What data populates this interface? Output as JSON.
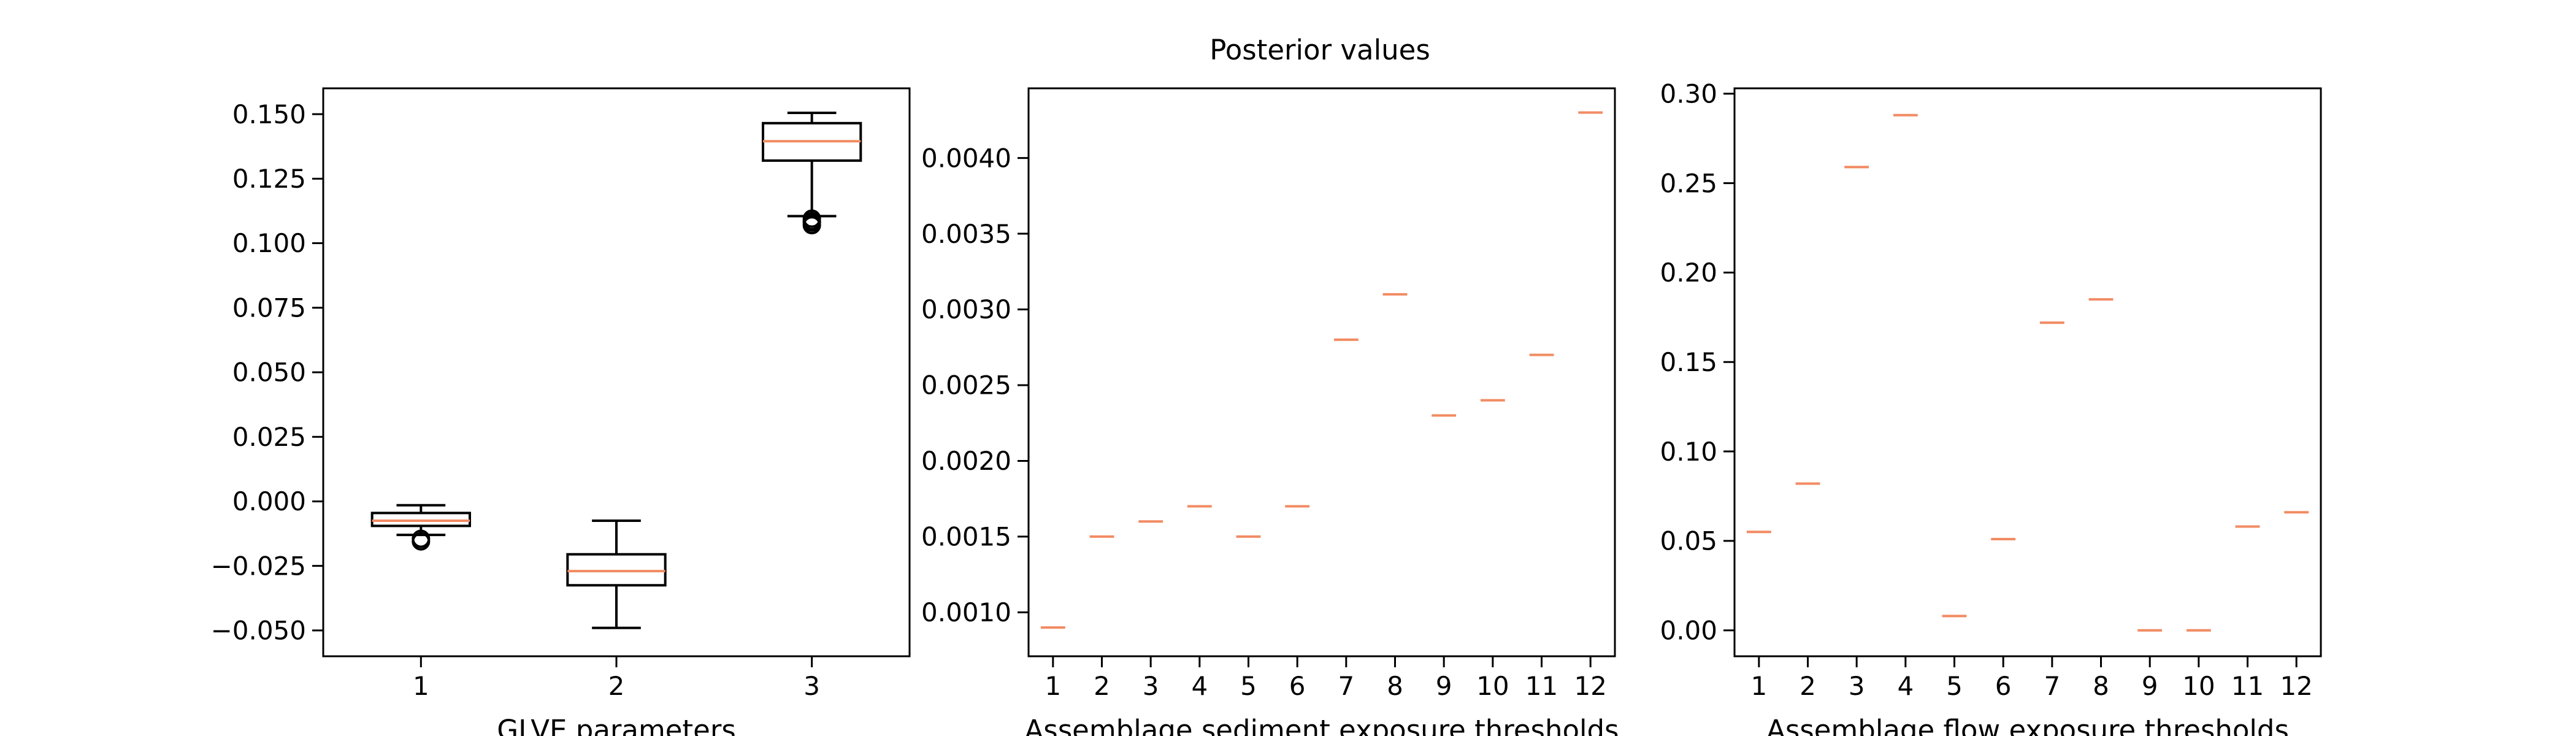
{
  "figure": {
    "title": "Posterior values"
  },
  "colors": {
    "median": "#f28b63",
    "box": "#000000",
    "axes": "#000000",
    "background": "#ffffff"
  },
  "chart_data": [
    {
      "type": "box",
      "title": "",
      "xlabel": "GLVE parameters",
      "ylabel": "",
      "categories": [
        "1",
        "2",
        "3"
      ],
      "ylim": [
        -0.06,
        0.16
      ],
      "yticks": [
        -0.05,
        -0.025,
        0,
        0.025,
        0.05,
        0.075,
        0.1,
        0.125,
        0.15
      ],
      "ytick_labels": [
        "−0.050",
        "−0.025",
        "0.000",
        "0.025",
        "0.050",
        "0.075",
        "0.100",
        "0.125",
        "0.150"
      ],
      "boxes": [
        {
          "whislo": -0.013,
          "q1": -0.0095,
          "med": -0.0075,
          "q3": -0.0045,
          "whishi": -0.0015,
          "fliers": [
            -0.0145,
            -0.0155
          ]
        },
        {
          "whislo": -0.049,
          "q1": -0.0325,
          "med": -0.027,
          "q3": -0.0205,
          "whishi": -0.0075,
          "fliers": []
        },
        {
          "whislo": 0.1105,
          "q1": 0.132,
          "med": 0.1395,
          "q3": 0.1465,
          "whishi": 0.1505,
          "fliers": [
            0.1095,
            0.1085,
            0.108,
            0.107
          ]
        }
      ]
    },
    {
      "type": "box",
      "title": "",
      "xlabel": "Assemblage sediment exposure thresholds",
      "ylabel": "",
      "categories": [
        "1",
        "2",
        "3",
        "4",
        "5",
        "6",
        "7",
        "8",
        "9",
        "10",
        "11",
        "12"
      ],
      "ylim": [
        0.00071,
        0.00446
      ],
      "yticks": [
        0.001,
        0.0015,
        0.002,
        0.0025,
        0.003,
        0.0035,
        0.004
      ],
      "ytick_labels": [
        "0.0010",
        "0.0015",
        "0.0020",
        "0.0025",
        "0.0030",
        "0.0035",
        "0.0040"
      ],
      "values": [
        0.0009,
        0.0015,
        0.0016,
        0.0017,
        0.0015,
        0.0017,
        0.0028,
        0.0031,
        0.0023,
        0.0024,
        0.0027,
        0.0043
      ]
    },
    {
      "type": "box",
      "title": "",
      "xlabel": "Assemblage flow exposure thresholds",
      "ylabel": "",
      "categories": [
        "1",
        "2",
        "3",
        "4",
        "5",
        "6",
        "7",
        "8",
        "9",
        "10",
        "11",
        "12"
      ],
      "ylim": [
        -0.0145,
        0.303
      ],
      "yticks": [
        0,
        0.05,
        0.1,
        0.15,
        0.2,
        0.25,
        0.3
      ],
      "ytick_labels": [
        "0.00",
        "0.05",
        "0.10",
        "0.15",
        "0.20",
        "0.25",
        "0.30"
      ],
      "values": [
        0.055,
        0.082,
        0.259,
        0.288,
        0.008,
        0.051,
        0.172,
        0.185,
        0.0,
        0.0,
        0.058,
        0.066
      ]
    }
  ]
}
